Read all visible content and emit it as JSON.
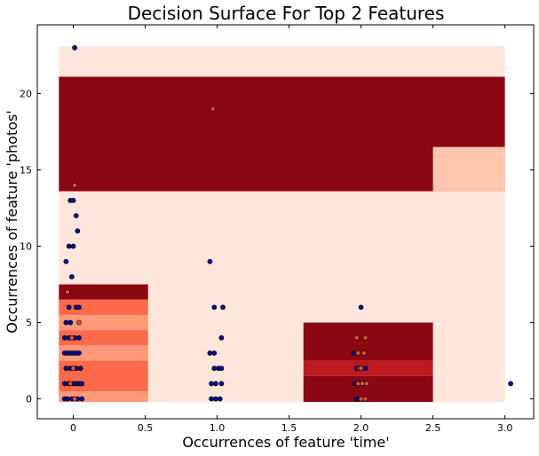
{
  "chart_data": {
    "type": "scatter",
    "title": "Decision Surface For Top 2 Features",
    "xlabel": "Occurrences of feature 'time'",
    "ylabel": "Occurrences of feature 'photos'",
    "xlim": [
      -0.25,
      3.2
    ],
    "ylim": [
      -1.3,
      24.5
    ],
    "xticks": [
      0,
      0.5,
      1,
      1.5,
      2,
      2.5,
      3
    ],
    "xtick_labels": [
      "0",
      "0.5",
      "1.0",
      "1.5",
      "2.0",
      "2.5",
      "3.0"
    ],
    "yticks": [
      0,
      5,
      10,
      15,
      20
    ],
    "ytick_labels": [
      "0",
      "5",
      "10",
      "15",
      "20"
    ],
    "grid": false,
    "colors": {
      "background_region": "#fee6dc",
      "dark_region": "#8a0714",
      "mid_region": "#bd1820",
      "light_red": "#fc6a4b",
      "salmon": "#fc9a7b",
      "peach": "#fdc6ad",
      "class_0_point": "#0c0c8a",
      "class_1_point": "#e05030"
    },
    "decision_regions": [
      {
        "x0": -0.1,
        "x1": 3.0,
        "y0": -0.2,
        "y1": 23.1,
        "fill": "#fee6dc"
      },
      {
        "x0": -0.1,
        "x1": 3.0,
        "y0": 13.6,
        "y1": 21.1,
        "fill": "#8a0714"
      },
      {
        "x0": 2.5,
        "x1": 3.0,
        "y0": 13.6,
        "y1": 16.5,
        "fill": "#fdc6ad"
      },
      {
        "x0": -0.1,
        "x1": 0.52,
        "y0": 6.5,
        "y1": 7.5,
        "fill": "#8a0714"
      },
      {
        "x0": -0.1,
        "x1": 0.52,
        "y0": 5.5,
        "y1": 6.5,
        "fill": "#fc6a4b"
      },
      {
        "x0": -0.1,
        "x1": 0.52,
        "y0": 4.5,
        "y1": 5.5,
        "fill": "#fc9a7b"
      },
      {
        "x0": -0.1,
        "x1": 0.52,
        "y0": 3.5,
        "y1": 4.5,
        "fill": "#fc6a4b"
      },
      {
        "x0": -0.1,
        "x1": 0.52,
        "y0": 2.5,
        "y1": 3.5,
        "fill": "#fc9a7b"
      },
      {
        "x0": -0.1,
        "x1": 0.52,
        "y0": 0.5,
        "y1": 2.5,
        "fill": "#fc6a4b"
      },
      {
        "x0": -0.1,
        "x1": 0.52,
        "y0": -0.2,
        "y1": 0.5,
        "fill": "#fc9a7b"
      },
      {
        "x0": 1.6,
        "x1": 2.5,
        "y0": 2.5,
        "y1": 5.0,
        "fill": "#8a0714"
      },
      {
        "x0": 1.6,
        "x1": 2.5,
        "y0": 1.5,
        "y1": 2.5,
        "fill": "#bd1820"
      },
      {
        "x0": 1.6,
        "x1": 2.5,
        "y0": -0.2,
        "y1": 1.5,
        "fill": "#8a0714"
      }
    ],
    "series": [
      {
        "points": [
          [
            0.01,
            23
          ],
          [
            -0.02,
            13
          ],
          [
            0.0,
            13
          ],
          [
            0.02,
            12
          ],
          [
            0.03,
            11
          ],
          [
            -0.03,
            10
          ],
          [
            0.0,
            10
          ],
          [
            -0.05,
            9
          ],
          [
            -0.01,
            8
          ],
          [
            -0.03,
            6
          ],
          [
            0.02,
            6
          ],
          [
            0.04,
            6
          ],
          [
            -0.05,
            5
          ],
          [
            -0.02,
            5
          ],
          [
            -0.06,
            4
          ],
          [
            -0.03,
            4
          ],
          [
            0.01,
            4
          ],
          [
            0.04,
            4
          ],
          [
            -0.06,
            3
          ],
          [
            -0.04,
            3
          ],
          [
            -0.02,
            3
          ],
          [
            0.0,
            3
          ],
          [
            0.02,
            3
          ],
          [
            0.04,
            3
          ],
          [
            -0.05,
            2
          ],
          [
            -0.02,
            2
          ],
          [
            0.02,
            2
          ],
          [
            0.05,
            2
          ],
          [
            -0.06,
            1
          ],
          [
            -0.03,
            1
          ],
          [
            0.0,
            1
          ],
          [
            0.02,
            1
          ],
          [
            0.04,
            1
          ],
          [
            0.06,
            1
          ],
          [
            -0.06,
            0
          ],
          [
            -0.04,
            0
          ],
          [
            -0.01,
            0
          ],
          [
            0.03,
            0
          ],
          [
            0.06,
            0
          ],
          [
            0.95,
            9
          ],
          [
            0.98,
            6
          ],
          [
            1.04,
            6
          ],
          [
            1.03,
            4
          ],
          [
            0.95,
            3
          ],
          [
            0.98,
            3
          ],
          [
            0.98,
            2
          ],
          [
            1.01,
            2
          ],
          [
            1.03,
            2
          ],
          [
            0.96,
            1
          ],
          [
            0.99,
            1
          ],
          [
            1.03,
            1
          ],
          [
            0.96,
            0
          ],
          [
            0.99,
            0
          ],
          [
            1.02,
            0
          ],
          [
            1.95,
            3
          ],
          [
            2.0,
            6
          ],
          [
            1.97,
            2
          ],
          [
            2.03,
            2
          ],
          [
            1.96,
            1
          ],
          [
            1.99,
            1
          ],
          [
            2.02,
            1
          ],
          [
            1.97,
            0
          ],
          [
            3.04,
            1
          ]
        ],
        "color": "#0c0c8a"
      },
      {
        "points": [
          [
            0.01,
            14
          ],
          [
            -0.04,
            7
          ],
          [
            0.04,
            5
          ],
          [
            -0.01,
            4
          ],
          [
            0.0,
            2
          ],
          [
            -0.02,
            1
          ],
          [
            0.01,
            0
          ],
          [
            0.97,
            19
          ],
          [
            1.97,
            4
          ],
          [
            2.03,
            4
          ],
          [
            1.98,
            3
          ],
          [
            2.02,
            3
          ],
          [
            1.99,
            2
          ],
          [
            2.0,
            2
          ],
          [
            1.98,
            1
          ],
          [
            2.01,
            1
          ],
          [
            2.04,
            1
          ],
          [
            2.0,
            0
          ],
          [
            2.03,
            0
          ]
        ],
        "color": "#e05030"
      }
    ]
  }
}
